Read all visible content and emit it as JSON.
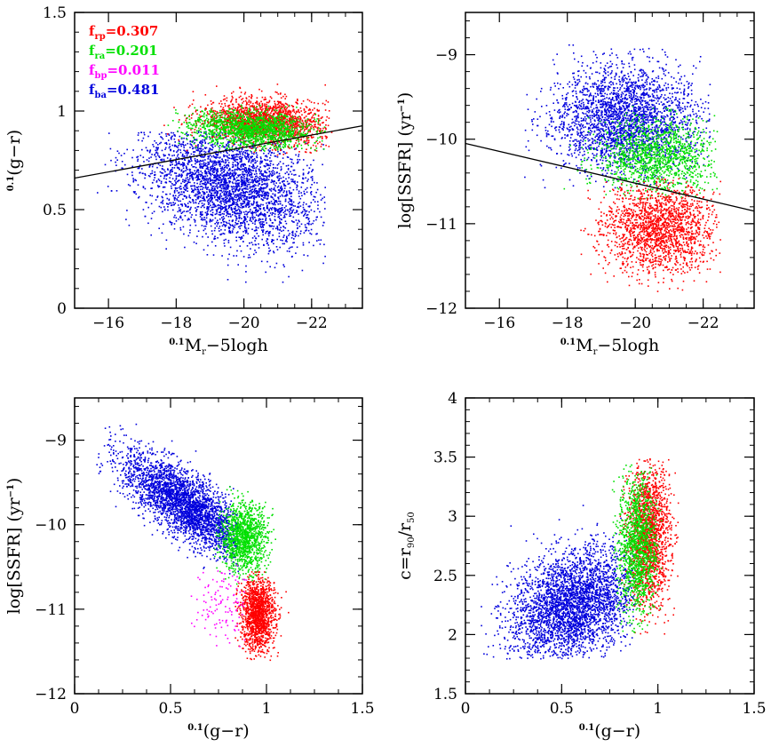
{
  "figure": {
    "background": "#ffffff",
    "foreground": "#000000"
  },
  "colors": {
    "red-passive": "#ff0000",
    "green-red-active": "#00e000",
    "magenta-blue-passive": "#ff00ff",
    "blue-active": "#0000dd"
  },
  "chart_data": [
    {
      "type": "scatter",
      "panel": "top-left",
      "xlim": [
        -15,
        -23.5
      ],
      "ylim": [
        0,
        1.5
      ],
      "xticks": [
        -16,
        -18,
        -20,
        -22
      ],
      "xtick_labels": [
        "−16",
        "−18",
        "−20",
        "−22"
      ],
      "yticks": [
        0,
        0.5,
        1,
        1.5
      ],
      "ytick_labels": [
        "0",
        "0.5",
        "1",
        "1.5"
      ],
      "xlabel": {
        "sup": "0.1",
        "main": "M",
        "sub": "r",
        "rest": "−5logh"
      },
      "ylabel": {
        "sup": "0.1",
        "main": "(g−r)"
      },
      "divider_line": {
        "x": [
          -15,
          -23.5
        ],
        "y": [
          0.66,
          0.925
        ]
      },
      "legend": [
        {
          "label": "f",
          "sub": "rp",
          "value": "=0.307",
          "color": "#ff0000"
        },
        {
          "label": "f",
          "sub": "ra",
          "value": "=0.201",
          "color": "#00e000"
        },
        {
          "label": "f",
          "sub": "bp",
          "value": "=0.011",
          "color": "#ff00ff"
        },
        {
          "label": "f",
          "sub": "ba",
          "value": "=0.481",
          "color": "#0000dd"
        }
      ],
      "series": [
        {
          "name": "blue-active",
          "color": "#0000dd",
          "n": 3200,
          "mx": -19.6,
          "sx": 1.3,
          "my": 0.62,
          "sy": 0.15,
          "rho": 0.35,
          "clip": {
            "x": [
              -15.2,
              -22.4
            ],
            "y": [
              0.03,
              0.9
            ]
          }
        },
        {
          "name": "red-passive",
          "color": "#ff0000",
          "n": 1800,
          "mx": -20.6,
          "sx": 0.9,
          "my": 0.95,
          "sy": 0.06,
          "rho": 0.2,
          "clip": {
            "x": [
              -17.3,
              -22.6
            ],
            "y": [
              0.78,
              1.14
            ]
          }
        },
        {
          "name": "green-red-active",
          "color": "#00e000",
          "n": 1500,
          "mx": -20.2,
          "sx": 0.9,
          "my": 0.91,
          "sy": 0.045,
          "rho": 0.2,
          "clip": {
            "x": [
              -17.3,
              -22.4
            ],
            "y": [
              0.8,
              1.05
            ]
          }
        }
      ]
    },
    {
      "type": "scatter",
      "panel": "top-right",
      "xlim": [
        -15,
        -23.5
      ],
      "ylim": [
        -12,
        -8.5
      ],
      "xticks": [
        -16,
        -18,
        -20,
        -22
      ],
      "xtick_labels": [
        "−16",
        "−18",
        "−20",
        "−22"
      ],
      "yticks": [
        -12,
        -11,
        -10,
        -9
      ],
      "ytick_labels": [
        "−12",
        "−11",
        "−10",
        "−9"
      ],
      "xlabel": {
        "sup": "0.1",
        "main": "M",
        "sub": "r",
        "rest": "−5logh"
      },
      "ylabel": {
        "main": "log[SSFR] (yr",
        "supr": "−1",
        "end": ")"
      },
      "divider_line": {
        "x": [
          -15,
          -23.5
        ],
        "y": [
          -10.05,
          -10.85
        ]
      },
      "series": [
        {
          "name": "blue-active",
          "color": "#0000dd",
          "n": 2600,
          "mx": -19.7,
          "sx": 1.05,
          "my": -9.75,
          "sy": 0.32,
          "rho": 0.0,
          "clip": {
            "x": [
              -16.7,
              -22.2
            ],
            "y": [
              -10.6,
              -8.85
            ]
          }
        },
        {
          "name": "green-red-active",
          "color": "#00e000",
          "n": 1300,
          "mx": -20.6,
          "sx": 0.85,
          "my": -10.2,
          "sy": 0.22,
          "rho": 0.0,
          "clip": {
            "x": [
              -17.5,
              -22.4
            ],
            "y": [
              -10.7,
              -9.6
            ]
          }
        },
        {
          "name": "red-passive",
          "color": "#ff0000",
          "n": 1800,
          "mx": -20.7,
          "sx": 0.85,
          "my": -11.05,
          "sy": 0.26,
          "rho": 0.0,
          "clip": {
            "x": [
              -18.0,
              -22.5
            ],
            "y": [
              -11.8,
              -10.45
            ]
          }
        }
      ]
    },
    {
      "type": "scatter",
      "panel": "bottom-left",
      "xlim": [
        0,
        1.5
      ],
      "ylim": [
        -12,
        -8.5
      ],
      "xticks": [
        0,
        0.5,
        1,
        1.5
      ],
      "xtick_labels": [
        "0",
        "0.5",
        "1",
        "1.5"
      ],
      "yticks": [
        -12,
        -11,
        -10,
        -9
      ],
      "ytick_labels": [
        "−12",
        "−11",
        "−10",
        "−9"
      ],
      "xlabel": {
        "sup": "0.1",
        "main": "(g−r)"
      },
      "ylabel": {
        "main": "log[SSFR] (yr",
        "supr": "−1",
        "end": ")"
      },
      "series": [
        {
          "name": "blue-active",
          "color": "#0000dd",
          "n": 3000,
          "mx": 0.57,
          "sx": 0.16,
          "my": -9.75,
          "sy": 0.3,
          "rho": -0.75,
          "clip": {
            "x": [
              0.1,
              0.85
            ],
            "y": [
              -10.6,
              -8.7
            ]
          }
        },
        {
          "name": "green-red-active",
          "color": "#00e000",
          "n": 1200,
          "mx": 0.88,
          "sx": 0.06,
          "my": -10.15,
          "sy": 0.2,
          "rho": 0.0,
          "clip": {
            "x": [
              0.72,
              1.05
            ],
            "y": [
              -10.7,
              -9.4
            ]
          }
        },
        {
          "name": "red-passive",
          "color": "#ff0000",
          "n": 1400,
          "mx": 0.95,
          "sx": 0.045,
          "my": -11.05,
          "sy": 0.22,
          "rho": 0.0,
          "clip": {
            "x": [
              0.83,
              1.12
            ],
            "y": [
              -11.6,
              -10.55
            ]
          }
        },
        {
          "name": "magenta-blue-passive",
          "color": "#ff00ff",
          "n": 120,
          "mx": 0.78,
          "sx": 0.08,
          "my": -10.9,
          "sy": 0.25,
          "rho": 0.0,
          "clip": {
            "x": [
              0.6,
              0.9
            ],
            "y": [
              -11.5,
              -10.45
            ]
          }
        }
      ]
    },
    {
      "type": "scatter",
      "panel": "bottom-right",
      "xlim": [
        0,
        1.5
      ],
      "ylim": [
        1.5,
        4
      ],
      "xticks": [
        0,
        0.5,
        1,
        1.5
      ],
      "xtick_labels": [
        "0",
        "0.5",
        "1",
        "1.5"
      ],
      "yticks": [
        1.5,
        2,
        2.5,
        3,
        3.5,
        4
      ],
      "ytick_labels": [
        "1.5",
        "2",
        "2.5",
        "3",
        "3.5",
        "4"
      ],
      "xlabel": {
        "sup": "0.1",
        "main": "(g−r)"
      },
      "ylabel": {
        "main": "c=r",
        "sub1": "90",
        "mid": "/r",
        "sub2": "50"
      },
      "series": [
        {
          "name": "blue-active",
          "color": "#0000dd",
          "n": 3200,
          "mx": 0.55,
          "sx": 0.16,
          "my": 2.25,
          "sy": 0.24,
          "rho": 0.3,
          "clip": {
            "x": [
              0.05,
              0.88
            ],
            "y": [
              1.8,
              3.3
            ]
          }
        },
        {
          "name": "red-passive",
          "color": "#ff0000",
          "n": 1700,
          "mx": 0.95,
          "sx": 0.055,
          "my": 2.85,
          "sy": 0.3,
          "rho": 0.0,
          "clip": {
            "x": [
              0.8,
              1.12
            ],
            "y": [
              2.0,
              3.5
            ]
          }
        },
        {
          "name": "green-red-active",
          "color": "#00e000",
          "n": 1300,
          "mx": 0.89,
          "sx": 0.05,
          "my": 2.75,
          "sy": 0.3,
          "rho": 0.0,
          "clip": {
            "x": [
              0.76,
              1.02
            ],
            "y": [
              2.0,
              3.45
            ]
          }
        }
      ]
    }
  ]
}
